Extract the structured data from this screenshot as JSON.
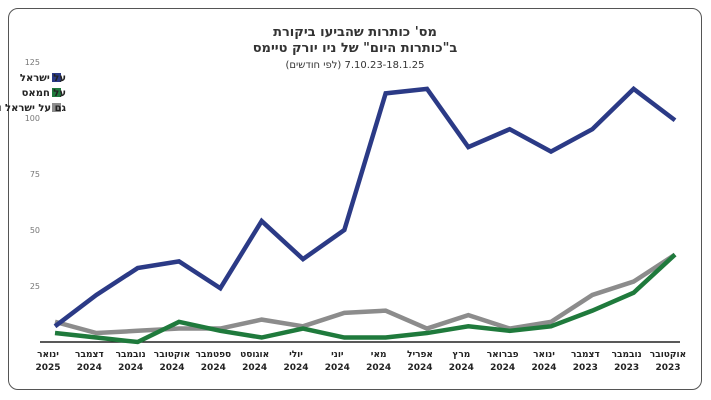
{
  "chart_data": {
    "type": "line",
    "title": "מס' כותרות שהביעו ביקורת",
    "title_line2": "ב\"כותרות היום\" של ניו יורק טיימס",
    "subtitle": "7.10.23-18.1.25 (לפי חודשים)",
    "ylim": [
      0,
      125
    ],
    "yticks": [
      25,
      50,
      75,
      100,
      125
    ],
    "categories": [
      {
        "month": "ינואר",
        "year": "2025"
      },
      {
        "month": "דצמבר",
        "year": "2024"
      },
      {
        "month": "נובמבר",
        "year": "2024"
      },
      {
        "month": "אוקטובר",
        "year": "2024"
      },
      {
        "month": "ספטמבר",
        "year": "2024"
      },
      {
        "month": "אוגוסט",
        "year": "2024"
      },
      {
        "month": "יולי",
        "year": "2024"
      },
      {
        "month": "יוני",
        "year": "2024"
      },
      {
        "month": "מאי",
        "year": "2024"
      },
      {
        "month": "אפריל",
        "year": "2024"
      },
      {
        "month": "מרץ",
        "year": "2024"
      },
      {
        "month": "פברואר",
        "year": "2024"
      },
      {
        "month": "ינואר",
        "year": "2024"
      },
      {
        "month": "דצמבר",
        "year": "2023"
      },
      {
        "month": "נובמבר",
        "year": "2023"
      },
      {
        "month": "אוקטובר",
        "year": "2023"
      }
    ],
    "series": [
      {
        "name": "על ישראל",
        "color": "#2b3a86",
        "values": [
          7,
          21,
          33,
          36,
          24,
          54,
          37,
          50,
          111,
          113,
          87,
          95,
          85,
          95,
          113,
          99
        ]
      },
      {
        "name": "על חמאס",
        "color": "#1f7a3c",
        "values": [
          4,
          2,
          0,
          9,
          5,
          2,
          6,
          2,
          2,
          4,
          7,
          5,
          7,
          14,
          22,
          39
        ]
      },
      {
        "name": "גם על ישראל וגם על חמאס",
        "color": "#8c8c8c",
        "values": [
          9,
          4,
          5,
          6,
          6,
          10,
          7,
          13,
          14,
          6,
          12,
          6,
          9,
          21,
          27,
          39
        ]
      }
    ],
    "legend_position": "top-left",
    "grid": false
  }
}
